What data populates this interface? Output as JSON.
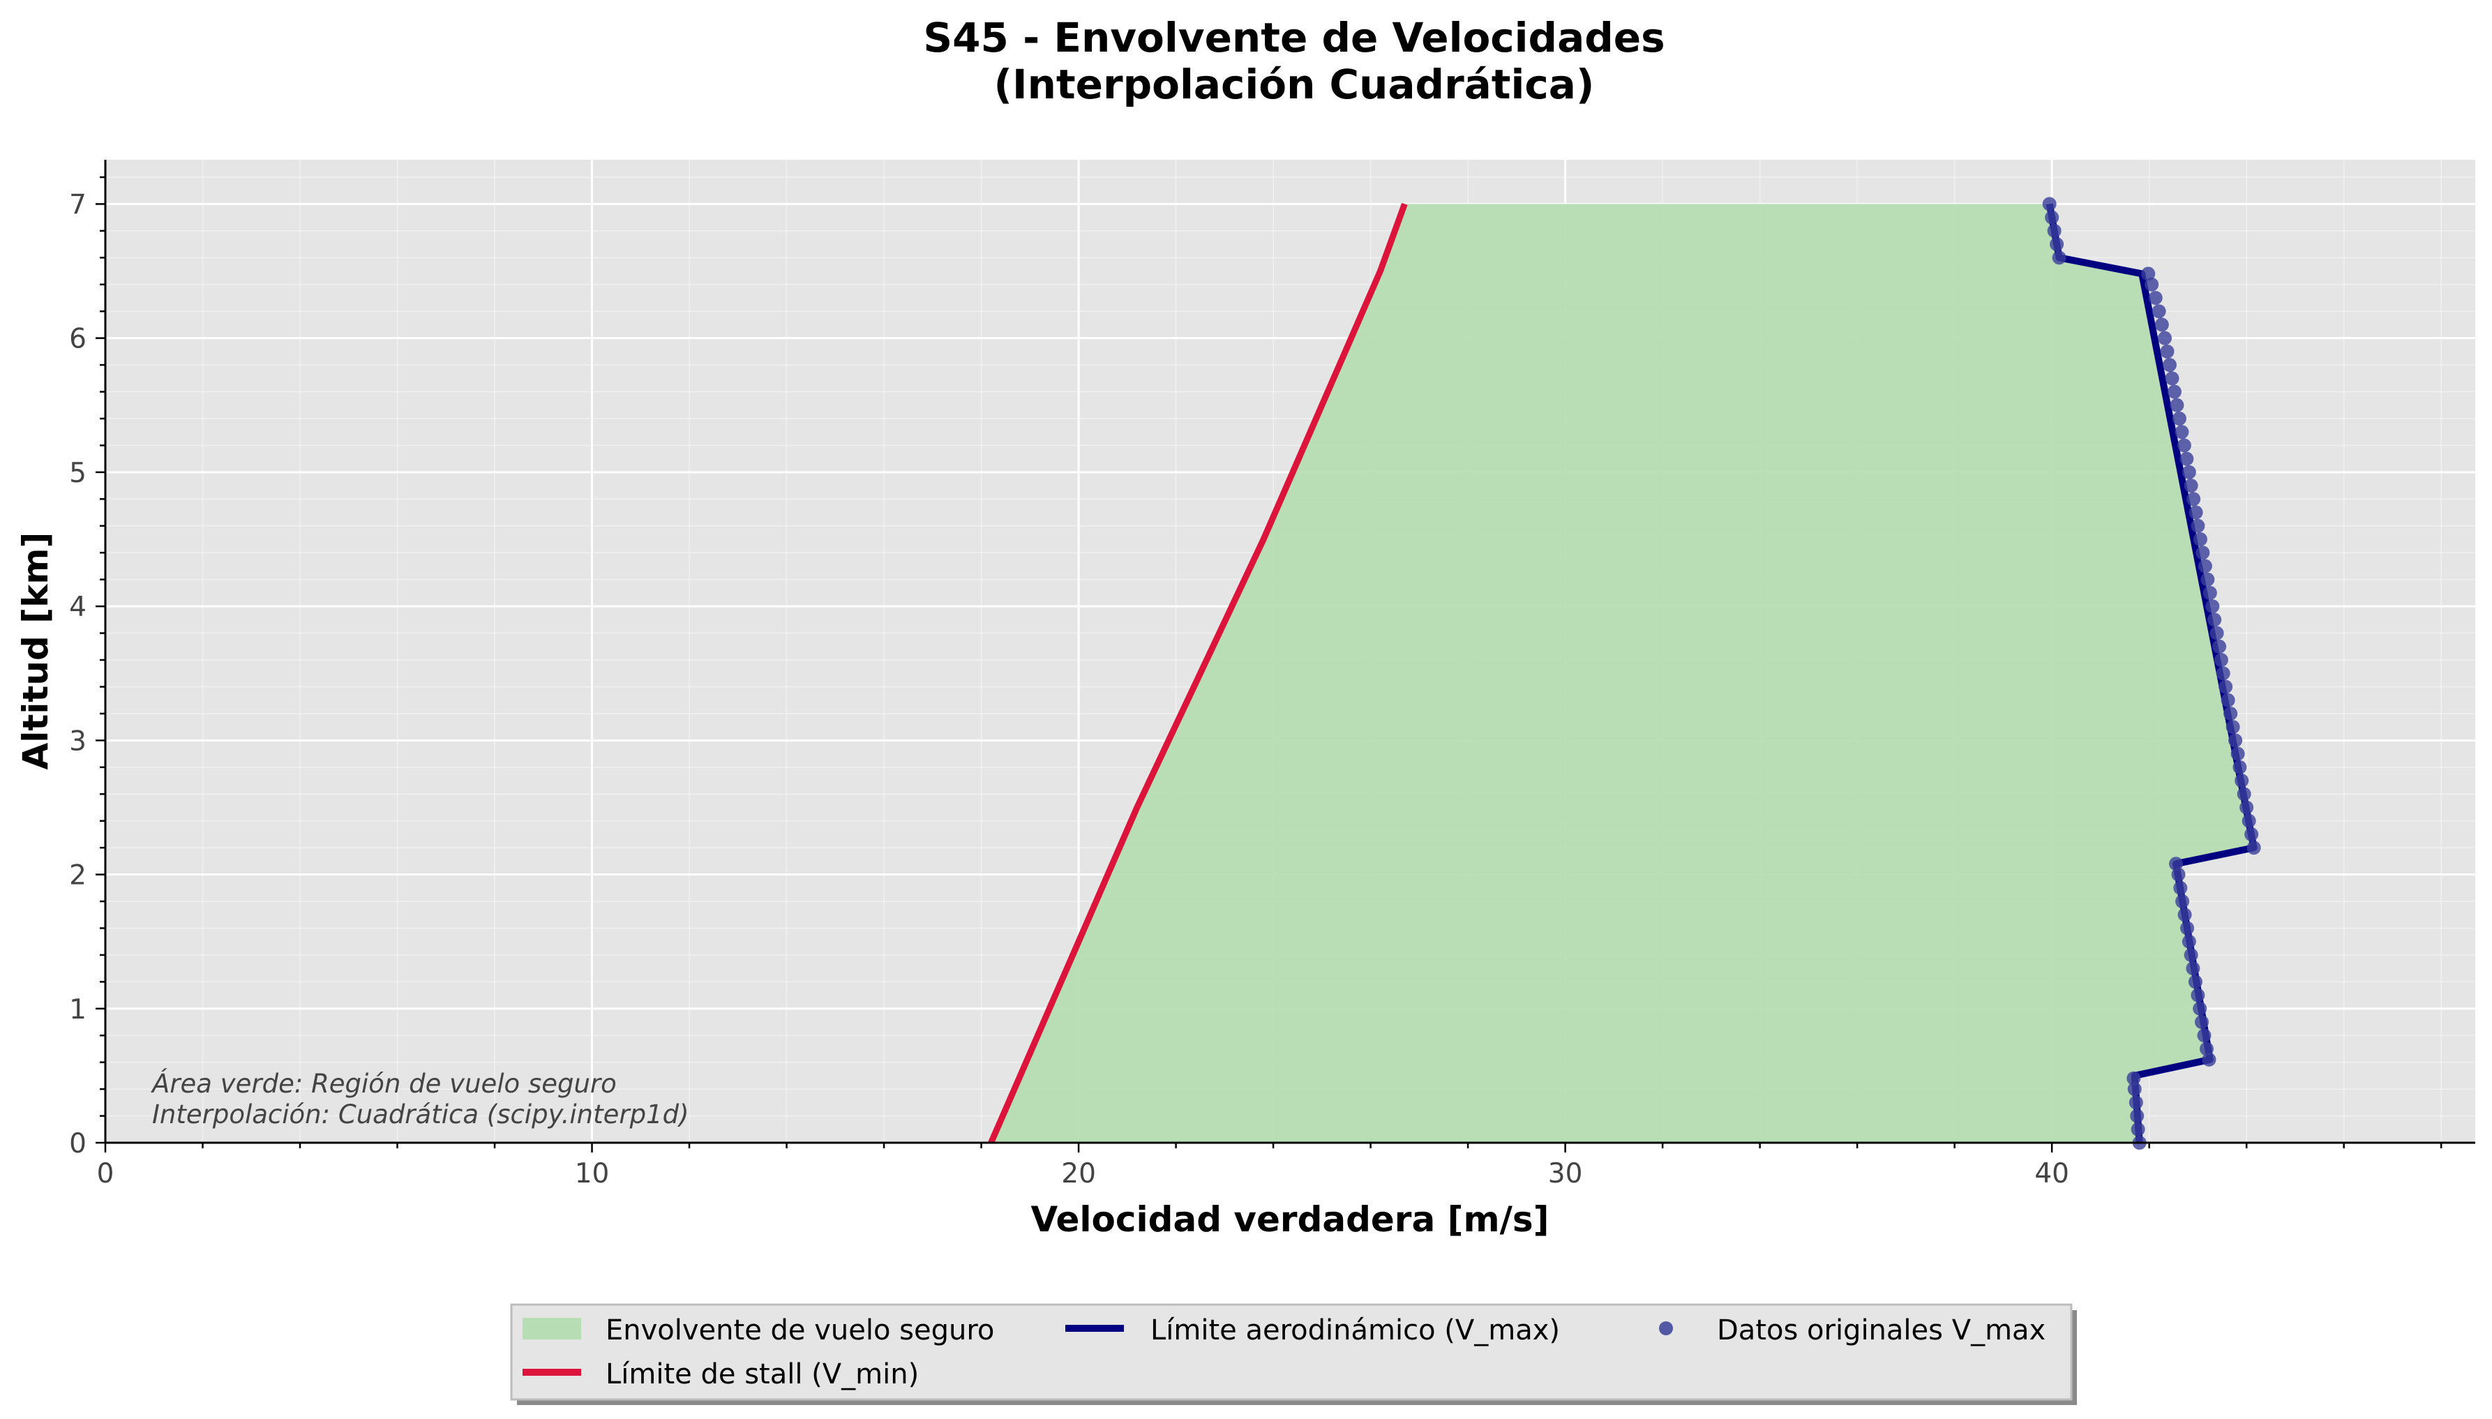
{
  "chart_data": {
    "type": "line",
    "title_lines": [
      "S45 - Envolvente de Velocidades",
      "(Interpolación Cuadrática)"
    ],
    "xlabel": "Velocidad verdadera [m/s]",
    "ylabel": "Altitud [km]",
    "xlim": [
      0,
      48.7
    ],
    "ylim": [
      0,
      7.33
    ],
    "xticks": [
      0,
      10,
      20,
      30,
      40
    ],
    "yticks": [
      0,
      1,
      2,
      3,
      4,
      5,
      6,
      7
    ],
    "x_minor_step": 2,
    "y_minor_step": 0.2,
    "grid": true,
    "background_color": "#e5e5e5",
    "annotations": [
      "Área verde: Región de vuelo seguro",
      "Interpolación: Cuadrática (scipy.interp1d)"
    ],
    "legend_position": "bottom-center",
    "legend": [
      {
        "label": "Envolvente de vuelo seguro",
        "kind": "patch",
        "color": "#b6ddb3"
      },
      {
        "label": "Límite aerodinámico (V_max)",
        "kind": "line",
        "color": "#000080"
      },
      {
        "label": "Datos originales V_max",
        "kind": "marker",
        "color": "#3a3f9a"
      },
      {
        "label": "Límite de stall (V_min)",
        "kind": "line",
        "color": "#dc143c"
      }
    ],
    "series": [
      {
        "name": "Límite de stall (V_min)",
        "color": "#dc143c",
        "points": [
          [
            18.2,
            0
          ],
          [
            18.8,
            0.5
          ],
          [
            19.4,
            1.0
          ],
          [
            20.0,
            1.5
          ],
          [
            20.6,
            2.0
          ],
          [
            21.2,
            2.5
          ],
          [
            21.85,
            3.0
          ],
          [
            22.5,
            3.5
          ],
          [
            23.15,
            4.0
          ],
          [
            23.8,
            4.5
          ],
          [
            24.4,
            5.0
          ],
          [
            25.0,
            5.5
          ],
          [
            25.6,
            6.0
          ],
          [
            26.2,
            6.5
          ],
          [
            26.7,
            7.0
          ]
        ]
      },
      {
        "name": "Límite aerodinámico (V_max)",
        "color": "#000080",
        "points": [
          [
            41.8,
            0
          ],
          [
            41.7,
            0.5
          ],
          [
            43.25,
            0.62
          ],
          [
            42.55,
            2.08
          ],
          [
            44.15,
            2.2
          ],
          [
            41.85,
            6.48
          ],
          [
            40.15,
            6.6
          ],
          [
            39.95,
            7.0
          ]
        ]
      }
    ],
    "markers": {
      "name": "Datos originales V_max",
      "color": "#3a3f9a",
      "points": [
        [
          41.8,
          0.0
        ],
        [
          41.77,
          0.1
        ],
        [
          41.75,
          0.2
        ],
        [
          41.73,
          0.3
        ],
        [
          41.7,
          0.4
        ],
        [
          41.68,
          0.48
        ],
        [
          43.23,
          0.62
        ],
        [
          43.18,
          0.7
        ],
        [
          43.13,
          0.8
        ],
        [
          43.08,
          0.9
        ],
        [
          43.04,
          1.0
        ],
        [
          43.0,
          1.1
        ],
        [
          42.95,
          1.2
        ],
        [
          42.9,
          1.3
        ],
        [
          42.86,
          1.4
        ],
        [
          42.82,
          1.5
        ],
        [
          42.78,
          1.6
        ],
        [
          42.73,
          1.7
        ],
        [
          42.68,
          1.8
        ],
        [
          42.64,
          1.9
        ],
        [
          42.6,
          2.0
        ],
        [
          42.55,
          2.08
        ],
        [
          44.15,
          2.2
        ],
        [
          44.1,
          2.3
        ],
        [
          44.05,
          2.4
        ],
        [
          44.0,
          2.5
        ],
        [
          43.95,
          2.6
        ],
        [
          43.9,
          2.7
        ],
        [
          43.86,
          2.8
        ],
        [
          43.82,
          2.9
        ],
        [
          43.77,
          3.0
        ],
        [
          43.72,
          3.1
        ],
        [
          43.67,
          3.2
        ],
        [
          43.62,
          3.3
        ],
        [
          43.57,
          3.4
        ],
        [
          43.52,
          3.5
        ],
        [
          43.48,
          3.6
        ],
        [
          43.44,
          3.7
        ],
        [
          43.39,
          3.8
        ],
        [
          43.34,
          3.9
        ],
        [
          43.3,
          4.0
        ],
        [
          43.25,
          4.1
        ],
        [
          43.2,
          4.2
        ],
        [
          43.15,
          4.3
        ],
        [
          43.1,
          4.4
        ],
        [
          43.05,
          4.5
        ],
        [
          43.0,
          4.6
        ],
        [
          42.96,
          4.7
        ],
        [
          42.91,
          4.8
        ],
        [
          42.86,
          4.9
        ],
        [
          42.82,
          5.0
        ],
        [
          42.77,
          5.1
        ],
        [
          42.72,
          5.2
        ],
        [
          42.67,
          5.3
        ],
        [
          42.62,
          5.4
        ],
        [
          42.57,
          5.5
        ],
        [
          42.52,
          5.6
        ],
        [
          42.47,
          5.7
        ],
        [
          42.42,
          5.8
        ],
        [
          42.37,
          5.9
        ],
        [
          42.32,
          6.0
        ],
        [
          42.26,
          6.1
        ],
        [
          42.2,
          6.2
        ],
        [
          42.13,
          6.3
        ],
        [
          42.05,
          6.4
        ],
        [
          41.98,
          6.48
        ],
        [
          40.15,
          6.6
        ],
        [
          40.1,
          6.7
        ],
        [
          40.05,
          6.8
        ],
        [
          40.0,
          6.9
        ],
        [
          39.95,
          7.0
        ]
      ]
    },
    "envelope": {
      "name": "Envolvente de vuelo seguro",
      "color": "#b6ddb3"
    }
  }
}
